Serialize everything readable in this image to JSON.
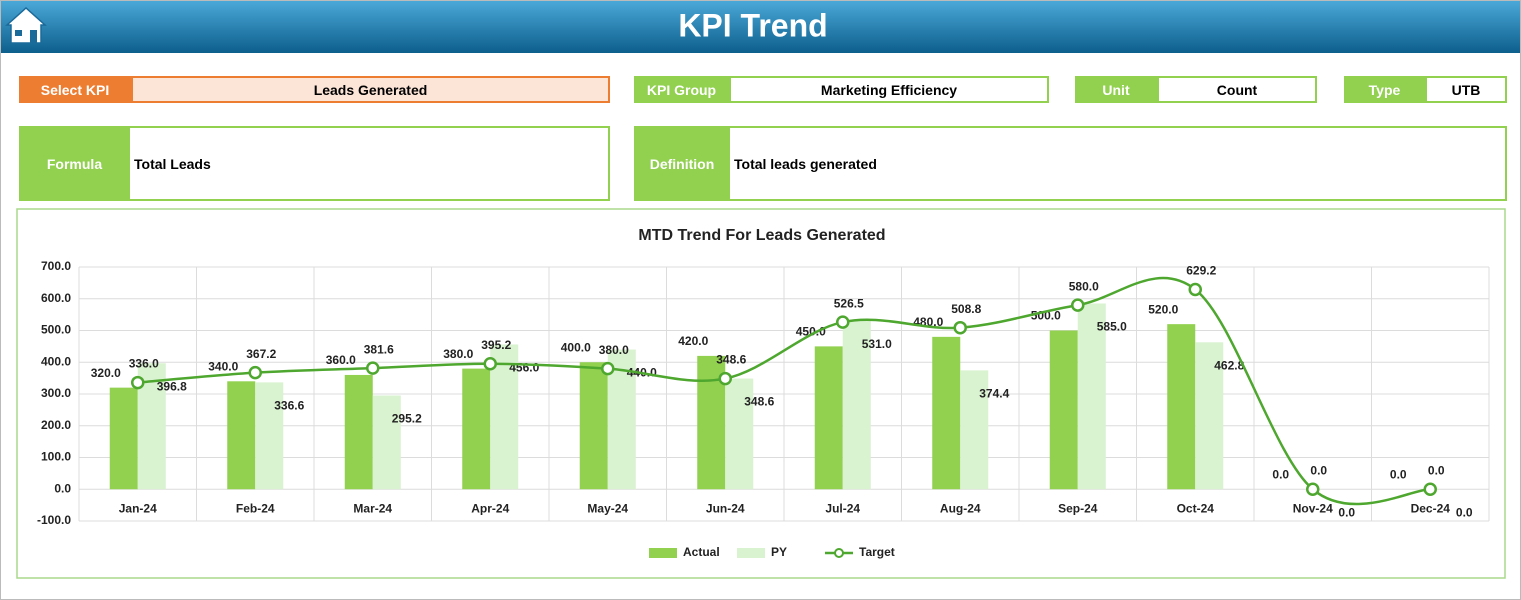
{
  "header": {
    "title": "KPI Trend"
  },
  "fields": [
    {
      "label": "Select KPI",
      "value": "Leads Generated"
    },
    {
      "label": "KPI Group",
      "value": "Marketing Efficiency"
    },
    {
      "label": "Unit",
      "value": "Count"
    },
    {
      "label": "Type",
      "value": "UTB"
    }
  ],
  "formula": {
    "label": "Formula",
    "value": "Total Leads"
  },
  "definition": {
    "label": "Definition",
    "value": "Total leads generated"
  },
  "chart_data": {
    "type": "bar-line",
    "title": "MTD Trend For Leads Generated",
    "categories": [
      "Jan-24",
      "Feb-24",
      "Mar-24",
      "Apr-24",
      "May-24",
      "Jun-24",
      "Jul-24",
      "Aug-24",
      "Sep-24",
      "Oct-24",
      "Nov-24",
      "Dec-24"
    ],
    "series": [
      {
        "name": "Actual",
        "type": "bar",
        "color": "#92d050",
        "values": [
          320,
          340,
          360,
          380,
          400,
          420,
          450,
          480,
          500,
          520,
          0,
          0
        ],
        "value_labels": [
          "320.0",
          "340.0",
          "360.0",
          "380.0",
          "400.0",
          "420.0",
          "450.0",
          "480.0",
          "500.0",
          "520.0",
          "0.0",
          "0.0"
        ]
      },
      {
        "name": "PY",
        "type": "bar",
        "color": "#d9f2d0",
        "values": [
          396.8,
          336.6,
          295.2,
          456,
          440,
          348.6,
          531,
          374.4,
          585,
          462.8,
          0,
          0
        ],
        "value_labels": [
          "396.8",
          "336.6",
          "295.2",
          "456.0",
          "440.0",
          "348.6",
          "531.0",
          "374.4",
          "585.0",
          "462.8",
          "0.0",
          "0.0"
        ]
      },
      {
        "name": "Target",
        "type": "line",
        "color": "#4ea72e",
        "values": [
          336,
          367.2,
          381.6,
          395.2,
          380,
          348.6,
          526.5,
          508.8,
          580,
          629.2,
          0,
          0
        ],
        "value_labels": [
          "336.0",
          "367.2",
          "381.6",
          "395.2",
          "380.0",
          "348.6",
          "526.5",
          "508.8",
          "580.0",
          "629.2",
          "0.0",
          "0.0"
        ]
      }
    ],
    "ylim": [
      -100,
      700
    ],
    "yticks": [
      {
        "value": -100,
        "label": "-100.0"
      },
      {
        "value": 0,
        "label": "0.0"
      },
      {
        "value": 100,
        "label": "100.0"
      },
      {
        "value": 200,
        "label": "200.0"
      },
      {
        "value": 300,
        "label": "300.0"
      },
      {
        "value": 400,
        "label": "400.0"
      },
      {
        "value": 500,
        "label": "500.0"
      },
      {
        "value": 600,
        "label": "600.0"
      },
      {
        "value": 700,
        "label": "700.0"
      }
    ],
    "grid": true,
    "legend": "bottom"
  }
}
